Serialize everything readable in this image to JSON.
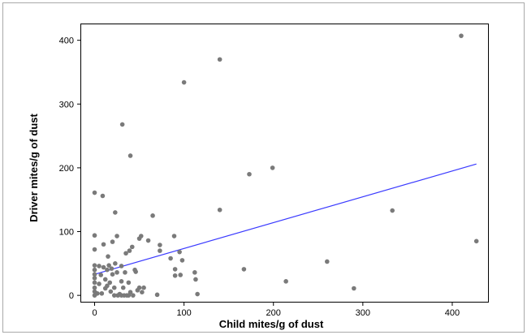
{
  "chart_data": {
    "type": "scatter",
    "title": "",
    "xlabel": "Child mites/g of dust",
    "ylabel": "Driver mites/g of dust",
    "xlim": [
      -15,
      440
    ],
    "ylim": [
      -10,
      425
    ],
    "xticks": [
      0,
      100,
      200,
      300,
      400
    ],
    "yticks": [
      0,
      100,
      200,
      300,
      400
    ],
    "grid": false,
    "legend": "none",
    "colors": {
      "points": "#7a7a7a",
      "fit_line": "#3a3aff",
      "frame": "#000000",
      "outer_border": "#aaaaaa"
    },
    "series": [
      {
        "points": [
          {
            "x": 0,
            "y": 161
          },
          {
            "x": 0,
            "y": 94
          },
          {
            "x": 0,
            "y": 72
          },
          {
            "x": 0,
            "y": 47
          },
          {
            "x": 0,
            "y": 40
          },
          {
            "x": 0,
            "y": 33
          },
          {
            "x": 0,
            "y": 27
          },
          {
            "x": 0,
            "y": 20
          },
          {
            "x": 0,
            "y": 12
          },
          {
            "x": 0,
            "y": 6
          },
          {
            "x": 0,
            "y": 0
          },
          {
            "x": 3,
            "y": 3
          },
          {
            "x": 5,
            "y": 46
          },
          {
            "x": 5,
            "y": 18
          },
          {
            "x": 7,
            "y": 32
          },
          {
            "x": 8,
            "y": 3
          },
          {
            "x": 9,
            "y": 156
          },
          {
            "x": 10,
            "y": 44
          },
          {
            "x": 10,
            "y": 80
          },
          {
            "x": 12,
            "y": 25
          },
          {
            "x": 12,
            "y": 11
          },
          {
            "x": 14,
            "y": 40
          },
          {
            "x": 14,
            "y": 15
          },
          {
            "x": 15,
            "y": 61
          },
          {
            "x": 16,
            "y": 47
          },
          {
            "x": 17,
            "y": 20
          },
          {
            "x": 18,
            "y": 6
          },
          {
            "x": 19,
            "y": 42
          },
          {
            "x": 20,
            "y": 33
          },
          {
            "x": 20,
            "y": 84
          },
          {
            "x": 22,
            "y": 12
          },
          {
            "x": 22,
            "y": 0
          },
          {
            "x": 23,
            "y": 50
          },
          {
            "x": 23,
            "y": 130
          },
          {
            "x": 25,
            "y": 93
          },
          {
            "x": 25,
            "y": 36
          },
          {
            "x": 26,
            "y": 0
          },
          {
            "x": 28,
            "y": 2
          },
          {
            "x": 30,
            "y": 22
          },
          {
            "x": 30,
            "y": 0
          },
          {
            "x": 30,
            "y": 46
          },
          {
            "x": 31,
            "y": 268
          },
          {
            "x": 32,
            "y": 12
          },
          {
            "x": 33,
            "y": 0
          },
          {
            "x": 34,
            "y": 36
          },
          {
            "x": 35,
            "y": 66
          },
          {
            "x": 36,
            "y": 0
          },
          {
            "x": 38,
            "y": 20
          },
          {
            "x": 38,
            "y": 0
          },
          {
            "x": 39,
            "y": 70
          },
          {
            "x": 40,
            "y": 219
          },
          {
            "x": 40,
            "y": 5
          },
          {
            "x": 42,
            "y": 76
          },
          {
            "x": 43,
            "y": 0
          },
          {
            "x": 45,
            "y": 40
          },
          {
            "x": 46,
            "y": 37
          },
          {
            "x": 48,
            "y": 8
          },
          {
            "x": 50,
            "y": 12
          },
          {
            "x": 50,
            "y": 89
          },
          {
            "x": 52,
            "y": 93
          },
          {
            "x": 53,
            "y": 5
          },
          {
            "x": 55,
            "y": 12
          },
          {
            "x": 60,
            "y": 86
          },
          {
            "x": 65,
            "y": 125
          },
          {
            "x": 70,
            "y": 1
          },
          {
            "x": 73,
            "y": 70
          },
          {
            "x": 73,
            "y": 79
          },
          {
            "x": 85,
            "y": 58
          },
          {
            "x": 89,
            "y": 93
          },
          {
            "x": 90,
            "y": 41
          },
          {
            "x": 90,
            "y": 31
          },
          {
            "x": 95,
            "y": 68
          },
          {
            "x": 96,
            "y": 32
          },
          {
            "x": 98,
            "y": 55
          },
          {
            "x": 100,
            "y": 334
          },
          {
            "x": 112,
            "y": 36
          },
          {
            "x": 113,
            "y": 25
          },
          {
            "x": 115,
            "y": 2
          },
          {
            "x": 140,
            "y": 370
          },
          {
            "x": 140,
            "y": 134
          },
          {
            "x": 167,
            "y": 41
          },
          {
            "x": 173,
            "y": 190
          },
          {
            "x": 199,
            "y": 200
          },
          {
            "x": 214,
            "y": 22
          },
          {
            "x": 260,
            "y": 53
          },
          {
            "x": 290,
            "y": 11
          },
          {
            "x": 333,
            "y": 133
          },
          {
            "x": 410,
            "y": 407
          },
          {
            "x": 427,
            "y": 85
          }
        ]
      }
    ],
    "fit_line": {
      "x": [
        0,
        427
      ],
      "y": [
        33,
        206
      ]
    }
  }
}
